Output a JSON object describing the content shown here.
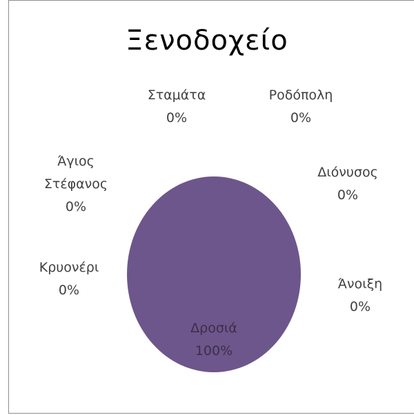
{
  "chart_data": {
    "type": "pie",
    "title": "Ξενοδοχείο",
    "categories": [
      "Δροσιά",
      "Ανοιξη",
      "Διόνυσος",
      "Ροδόπολη",
      "Σταμάτα",
      "Άγιος Στέφανος",
      "Κρυονέρι"
    ],
    "values": [
      100,
      0,
      0,
      0,
      0,
      0,
      0
    ],
    "data_labels": [
      {
        "name_lines": [
          "Δροσιά"
        ],
        "percent": "100%"
      },
      {
        "name_lines": [
          "Άνοιξη"
        ],
        "percent": "0%"
      },
      {
        "name_lines": [
          "Διόνυσος"
        ],
        "percent": "0%"
      },
      {
        "name_lines": [
          "Ροδόπολη"
        ],
        "percent": "0%"
      },
      {
        "name_lines": [
          "Σταμάτα"
        ],
        "percent": "0%"
      },
      {
        "name_lines": [
          "Άγιος",
          "Στέφανος"
        ],
        "percent": "0%"
      },
      {
        "name_lines": [
          "Κρυονέρι"
        ],
        "percent": "0%"
      }
    ],
    "colors": {
      "slice": "#6d568b",
      "label_text": "#404040",
      "label_inside_text": "#3a2f4a"
    },
    "legend": "none"
  }
}
